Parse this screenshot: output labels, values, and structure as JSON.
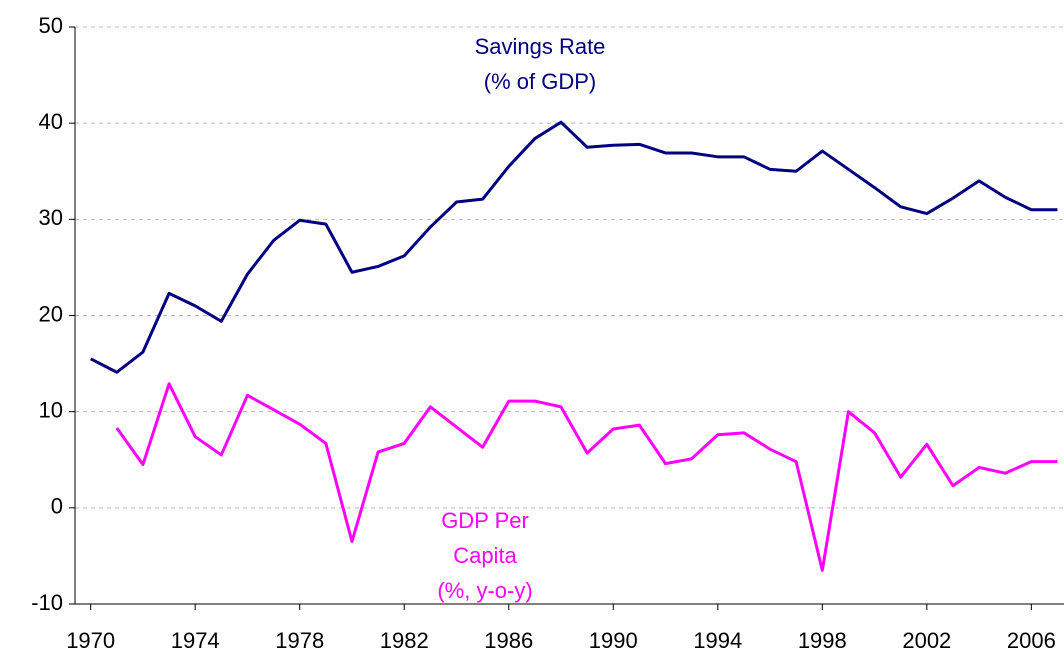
{
  "chart_data": {
    "type": "line",
    "x": [
      1970,
      1971,
      1972,
      1973,
      1974,
      1975,
      1976,
      1977,
      1978,
      1979,
      1980,
      1981,
      1982,
      1983,
      1984,
      1985,
      1986,
      1987,
      1988,
      1989,
      1990,
      1991,
      1992,
      1993,
      1994,
      1995,
      1996,
      1997,
      1998,
      1999,
      2000,
      2001,
      2002,
      2003,
      2004,
      2005,
      2006,
      2007
    ],
    "series": [
      {
        "name": "Savings Rate (% of GDP)",
        "color": "#000080",
        "values": [
          15.5,
          14.1,
          16.2,
          22.3,
          21.0,
          19.4,
          24.3,
          27.8,
          29.9,
          29.5,
          24.5,
          25.1,
          26.2,
          29.2,
          31.8,
          32.1,
          35.5,
          38.4,
          40.1,
          37.5,
          37.7,
          37.8,
          36.9,
          36.9,
          36.5,
          36.5,
          35.2,
          35.0,
          37.1,
          35.2,
          33.3,
          31.3,
          30.6,
          32.2,
          34.0,
          32.3,
          31.0,
          31.0
        ]
      },
      {
        "name": "GDP Per Capita (%, y-o-y)",
        "color": "#ff00ff",
        "values": [
          null,
          8.3,
          4.5,
          12.9,
          7.4,
          5.5,
          11.7,
          10.2,
          8.7,
          6.7,
          -3.5,
          5.8,
          6.7,
          10.5,
          8.4,
          6.3,
          11.1,
          11.1,
          10.5,
          5.7,
          8.2,
          8.6,
          4.6,
          5.1,
          7.6,
          7.8,
          6.1,
          4.8,
          -6.5,
          10.0,
          7.8,
          3.2,
          6.6,
          2.3,
          4.2,
          3.6,
          4.8,
          4.8
        ]
      }
    ],
    "annotations": [
      {
        "lines": [
          "Savings Rate",
          "(% of GDP)"
        ],
        "color": "#000080"
      },
      {
        "lines": [
          "GDP Per",
          "Capita",
          "(%, y-o-y)"
        ],
        "color": "#ff00ff"
      }
    ],
    "xlim": [
      1969.4,
      2007.25
    ],
    "xticks": [
      1970,
      1974,
      1978,
      1982,
      1986,
      1990,
      1994,
      1998,
      2002,
      2006
    ],
    "ylim": [
      -10,
      50
    ],
    "yticks": [
      -10,
      0,
      10,
      20,
      30,
      40,
      50
    ],
    "grid": true
  }
}
